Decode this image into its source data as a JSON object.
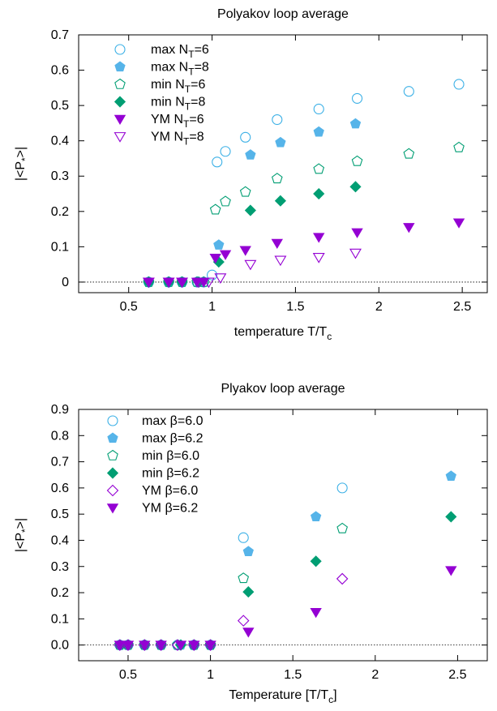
{
  "chart_data": [
    {
      "type": "scatter",
      "title": "Polyakov loop average",
      "xlabel": "temperature T/T",
      "xlabel_sub": "c",
      "ylabel": "|<P",
      "ylabel_sub": "*",
      "ylabel_end": ">|",
      "xlim": [
        0.2,
        2.65
      ],
      "ylim": [
        -0.03,
        0.7
      ],
      "xticks": [
        0.5,
        1,
        1.5,
        2,
        2.5
      ],
      "xtick_labels": [
        "0.5",
        "1",
        "1.5",
        "2",
        "2.5"
      ],
      "yticks": [
        0,
        0.1,
        0.2,
        0.3,
        0.4,
        0.5,
        0.6,
        0.7
      ],
      "ytick_labels": [
        "0",
        "0.1",
        "0.2",
        "0.3",
        "0.4",
        "0.5",
        "0.6",
        "0.7"
      ],
      "zero_line": true,
      "legend_position": "top-left",
      "series": [
        {
          "label": "max N",
          "sub": "T",
          "suffix": "=6",
          "marker": "circle-open",
          "color": "#3bb0e6",
          "x": [
            0.62,
            0.74,
            0.82,
            0.91,
            0.95,
            1.0,
            1.03,
            1.08,
            1.2,
            1.39,
            1.64,
            1.87,
            2.18,
            2.48
          ],
          "y": [
            0.0,
            0.0,
            0.0,
            0.0,
            0.0,
            0.02,
            0.34,
            0.37,
            0.41,
            0.46,
            0.49,
            0.52,
            0.54,
            0.56
          ]
        },
        {
          "label": "max N",
          "sub": "T",
          "suffix": "=8",
          "marker": "pentagon-filled",
          "color": "#56b4e9",
          "x": [
            0.62,
            0.74,
            0.82,
            0.92,
            1.04,
            1.23,
            1.41,
            1.64,
            1.86
          ],
          "y": [
            0.0,
            0.0,
            0.0,
            0.0,
            0.105,
            0.36,
            0.395,
            0.425,
            0.448
          ]
        },
        {
          "label": "min N",
          "sub": "T",
          "suffix": "=6",
          "marker": "pentagon-open",
          "color": "#009e73",
          "x": [
            0.62,
            0.74,
            0.82,
            0.91,
            0.95,
            1.02,
            1.08,
            1.2,
            1.39,
            1.64,
            1.87,
            2.18,
            2.48
          ],
          "y": [
            0.0,
            0.0,
            0.0,
            0.0,
            0.0,
            0.205,
            0.228,
            0.255,
            0.293,
            0.32,
            0.342,
            0.363,
            0.381
          ]
        },
        {
          "label": "min N",
          "sub": "T",
          "suffix": "=8",
          "marker": "diamond-filled",
          "color": "#009e73",
          "x": [
            0.62,
            0.74,
            0.82,
            0.92,
            1.04,
            1.23,
            1.41,
            1.64,
            1.86
          ],
          "y": [
            0.0,
            0.0,
            0.0,
            0.0,
            0.057,
            0.203,
            0.23,
            0.25,
            0.27
          ]
        },
        {
          "label": "YM  N",
          "sub": "T",
          "suffix": "=6",
          "marker": "triangle-down-filled",
          "color": "#9400d3",
          "x": [
            0.62,
            0.74,
            0.82,
            0.91,
            0.95,
            1.02,
            1.08,
            1.2,
            1.39,
            1.64,
            1.87,
            2.18,
            2.48
          ],
          "y": [
            0.0,
            0.0,
            0.0,
            0.0,
            0.0,
            0.068,
            0.078,
            0.09,
            0.11,
            0.127,
            0.14,
            0.155,
            0.168
          ]
        },
        {
          "label": "YM  N",
          "sub": "T",
          "suffix": "=8",
          "marker": "triangle-down-open",
          "color": "#9400d3",
          "x": [
            0.62,
            0.74,
            0.82,
            0.92,
            0.98,
            1.05,
            1.23,
            1.41,
            1.64,
            1.86
          ],
          "y": [
            0.0,
            0.0,
            0.0,
            0.0,
            0.0,
            0.012,
            0.05,
            0.062,
            0.07,
            0.082
          ]
        }
      ]
    },
    {
      "type": "scatter",
      "title": "Plyakov loop average",
      "xlabel": "Temperature [T/T",
      "xlabel_sub": "c",
      "xlabel_end": "]",
      "ylabel": "|<P",
      "ylabel_sub": "*",
      "ylabel_end": ">|",
      "xlim": [
        0.2,
        2.68
      ],
      "ylim": [
        -0.06,
        0.9
      ],
      "xticks": [
        0.5,
        1,
        1.5,
        2,
        2.5
      ],
      "xtick_labels": [
        "0.5",
        "1",
        "1.5",
        "2",
        "2.5"
      ],
      "yticks": [
        0,
        0.1,
        0.2,
        0.3,
        0.4,
        0.5,
        0.6,
        0.7,
        0.8,
        0.9
      ],
      "ytick_labels": [
        "0.0",
        "0.1",
        "0.2",
        "0.3",
        "0.4",
        "0.5",
        "0.6",
        "0.7",
        "0.8",
        "0.9"
      ],
      "zero_line": true,
      "legend_position": "top-left",
      "series": [
        {
          "label": "max β=6.0",
          "marker": "circle-open",
          "color": "#3bb0e6",
          "x": [
            0.45,
            0.5,
            0.6,
            0.7,
            0.8,
            0.9,
            1.0,
            1.2,
            1.8
          ],
          "y": [
            0.0,
            0.0,
            0.0,
            0.0,
            0.0,
            0.0,
            0.0,
            0.41,
            0.6
          ]
        },
        {
          "label": "max β=6.2",
          "marker": "pentagon-filled",
          "color": "#56b4e9",
          "x": [
            0.45,
            0.5,
            0.6,
            0.7,
            0.82,
            0.9,
            1.0,
            1.23,
            1.64,
            2.46
          ],
          "y": [
            0.0,
            0.0,
            0.0,
            0.0,
            0.0,
            0.0,
            0.0,
            0.357,
            0.49,
            0.645
          ]
        },
        {
          "label": "min β=6.0",
          "marker": "pentagon-open",
          "color": "#009e73",
          "x": [
            0.45,
            0.5,
            0.6,
            0.7,
            0.8,
            0.9,
            1.0,
            1.2,
            1.8
          ],
          "y": [
            0.0,
            0.0,
            0.0,
            0.0,
            0.0,
            0.0,
            0.0,
            0.255,
            0.445
          ]
        },
        {
          "label": "min β=6.2",
          "marker": "diamond-filled",
          "color": "#009e73",
          "x": [
            0.45,
            0.5,
            0.6,
            0.7,
            0.82,
            0.9,
            1.0,
            1.23,
            1.64,
            2.46
          ],
          "y": [
            0.0,
            0.0,
            0.0,
            0.0,
            0.0,
            0.0,
            0.0,
            0.203,
            0.32,
            0.49
          ]
        },
        {
          "label": "YM  β=6.0",
          "marker": "diamond-open",
          "color": "#9400d3",
          "x": [
            0.45,
            0.5,
            0.6,
            0.7,
            0.8,
            0.9,
            1.0,
            1.2,
            1.8
          ],
          "y": [
            0.0,
            0.0,
            0.0,
            0.0,
            0.0,
            0.0,
            0.0,
            0.093,
            0.253
          ]
        },
        {
          "label": "YM  β=6.2",
          "marker": "triangle-down-filled",
          "color": "#9400d3",
          "x": [
            0.45,
            0.5,
            0.6,
            0.7,
            0.82,
            0.9,
            1.0,
            1.23,
            1.64,
            2.46
          ],
          "y": [
            0.0,
            0.0,
            0.0,
            0.0,
            0.0,
            0.0,
            0.0,
            0.05,
            0.125,
            0.285
          ]
        }
      ]
    }
  ]
}
